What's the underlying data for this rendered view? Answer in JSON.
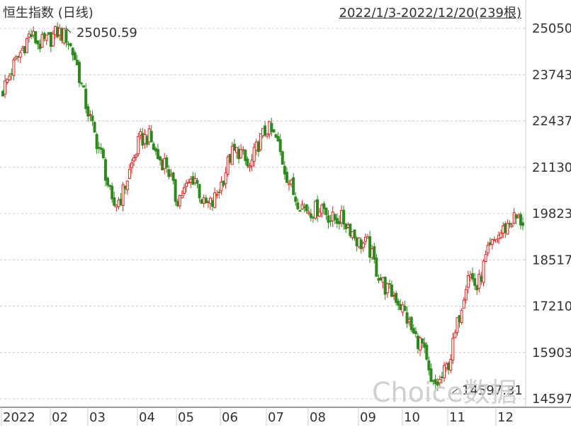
{
  "header": {
    "title": "恒生指数 (日线)",
    "range": "2022/1/3-2022/12/20(239根)"
  },
  "colors": {
    "up": "#d6251f",
    "down": "#2f8a1e",
    "grid": "#cccccc",
    "text": "#333333",
    "watermark": "#c8c8c8"
  },
  "watermark": "Choice数据",
  "chart_data": {
    "type": "candlestick",
    "title": "恒生指数 (日线)",
    "y_ticks": [
      "25050",
      "23743",
      "22437",
      "21130",
      "19823",
      "18517",
      "17210",
      "15903",
      "14597"
    ],
    "x_labels": [
      "2022",
      "02",
      "03",
      "04",
      "05",
      "06",
      "07",
      "08",
      "09",
      "10",
      "11",
      "12"
    ],
    "ylim": [
      14597,
      25050
    ],
    "grid": true,
    "annotations": [
      {
        "label": "25050.59",
        "type": "high",
        "value": 25050.59
      },
      {
        "label": "14597.31",
        "type": "low",
        "value": 14597.31
      }
    ],
    "approx_closes_weekly": [
      23300,
      23900,
      24400,
      24900,
      24600,
      24700,
      24950,
      24800,
      24150,
      23000,
      22100,
      21300,
      20000,
      20300,
      21100,
      21900,
      22000,
      21400,
      21200,
      20200,
      20500,
      20900,
      20050,
      20100,
      20700,
      21500,
      21600,
      21050,
      21800,
      22250,
      21900,
      21000,
      20300,
      20000,
      19900,
      20050,
      19650,
      19700,
      19450,
      19000,
      18950,
      18200,
      17700,
      17500,
      17050,
      16400,
      16100,
      14900,
      15100,
      15700,
      16900,
      18200,
      17700,
      18600,
      19100,
      19400,
      19700,
      19600
    ]
  }
}
